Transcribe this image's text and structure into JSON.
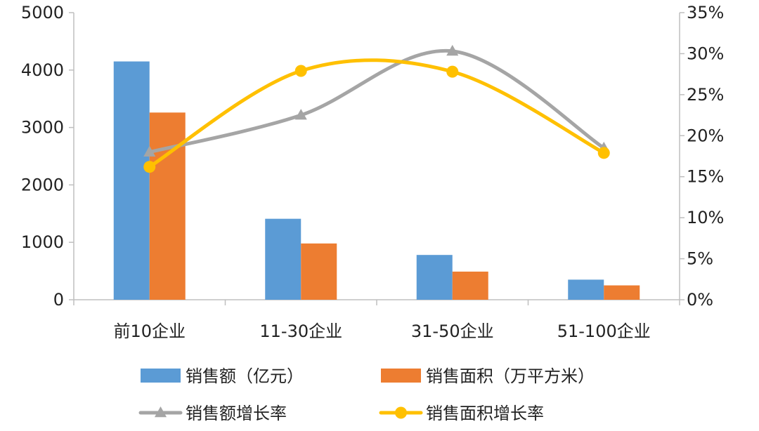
{
  "chart_data": {
    "type": "bar",
    "categories": [
      "前10企业",
      "11-30企业",
      "31-50企业",
      "51-100企业"
    ],
    "series": [
      {
        "name": "销售额（亿元）",
        "type": "bar",
        "axis": "left",
        "color": "#5B9BD5",
        "values": [
          4150,
          1410,
          780,
          350
        ]
      },
      {
        "name": "销售面积（万平方米）",
        "type": "bar",
        "axis": "left",
        "color": "#ED7D31",
        "values": [
          3260,
          980,
          490,
          250
        ]
      },
      {
        "name": "销售额增长率",
        "type": "line",
        "axis": "right",
        "marker": "triangle",
        "color": "#A5A5A5",
        "values": [
          18.0,
          22.5,
          30.3,
          18.5
        ]
      },
      {
        "name": "销售面积增长率",
        "type": "line",
        "axis": "right",
        "marker": "circle",
        "color": "#FFC000",
        "values": [
          16.2,
          27.9,
          27.8,
          17.9
        ]
      }
    ],
    "y_left": {
      "ylim": [
        0,
        5000
      ],
      "ticks": [
        "0",
        "1000",
        "2000",
        "3000",
        "4000",
        "5000"
      ]
    },
    "y_right": {
      "ylim": [
        0,
        35
      ],
      "ticks": [
        "0%",
        "5%",
        "10%",
        "15%",
        "20%",
        "25%",
        "30%",
        "35%"
      ]
    },
    "grid": false,
    "legend": {
      "position": "bottom",
      "items": [
        "销售额（亿元）",
        "销售面积（万平方米）",
        "销售额增长率",
        "销售面积增长率"
      ]
    },
    "title": "",
    "xlabel": "",
    "ylabel": ""
  }
}
